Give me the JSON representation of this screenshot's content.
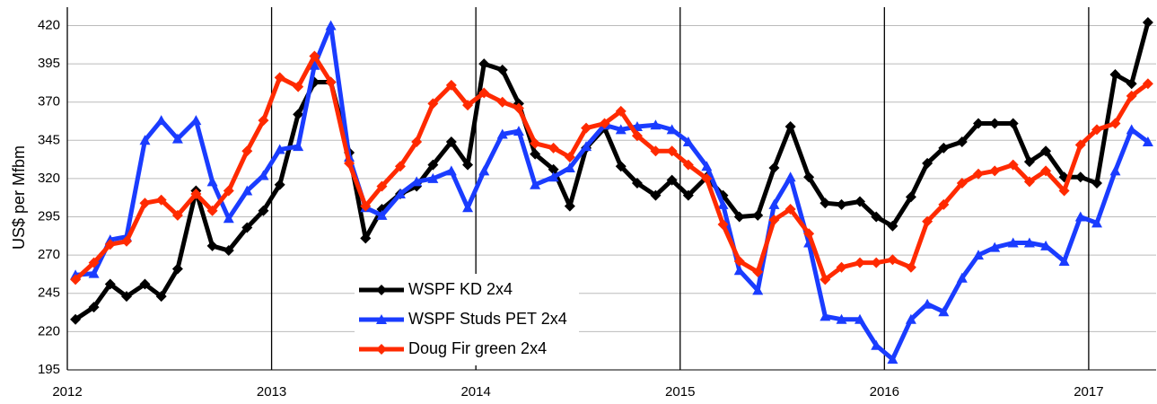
{
  "chart_data": {
    "type": "line",
    "y_label": "US$ per Mfbm",
    "x": [
      2012.04,
      2012.13,
      2012.21,
      2012.29,
      2012.38,
      2012.46,
      2012.54,
      2012.63,
      2012.71,
      2012.79,
      2012.88,
      2012.96,
      2013.04,
      2013.13,
      2013.21,
      2013.29,
      2013.38,
      2013.46,
      2013.54,
      2013.63,
      2013.71,
      2013.79,
      2013.88,
      2013.96,
      2014.04,
      2014.13,
      2014.21,
      2014.29,
      2014.38,
      2014.46,
      2014.54,
      2014.63,
      2014.71,
      2014.79,
      2014.88,
      2014.96,
      2015.04,
      2015.13,
      2015.21,
      2015.29,
      2015.38,
      2015.46,
      2015.54,
      2015.63,
      2015.71,
      2015.79,
      2015.88,
      2015.96,
      2016.04,
      2016.13,
      2016.21,
      2016.29,
      2016.38,
      2016.46,
      2016.54,
      2016.63,
      2016.71,
      2016.79,
      2016.88,
      2016.96,
      2017.04,
      2017.13,
      2017.21,
      2017.29
    ],
    "series": [
      {
        "name": "WSPF KD 2x4",
        "color": "#000000",
        "marker": "diamond",
        "values": [
          228,
          236,
          251,
          243,
          251,
          243,
          261,
          312,
          276,
          273,
          288,
          299,
          316,
          362,
          383,
          383,
          337,
          281,
          300,
          310,
          315,
          329,
          344,
          329,
          395,
          391,
          369,
          336,
          326,
          302,
          340,
          353,
          328,
          317,
          309,
          319,
          309,
          321,
          309,
          295,
          296,
          327,
          354,
          321,
          304,
          303,
          305,
          295,
          289,
          308,
          330,
          340,
          344,
          356,
          356,
          356,
          331,
          338,
          321,
          321,
          317,
          388,
          382,
          422
        ]
      },
      {
        "name": "WSPF Studs PET 2x4",
        "color": "#1a3cff",
        "marker": "triangle",
        "values": [
          257,
          258,
          280,
          282,
          345,
          358,
          346,
          358,
          318,
          294,
          312,
          322,
          339,
          341,
          394,
          420,
          334,
          301,
          296,
          310,
          318,
          320,
          325,
          301,
          325,
          349,
          351,
          316,
          321,
          327,
          341,
          355,
          352,
          354,
          355,
          352,
          344,
          328,
          303,
          260,
          247,
          303,
          321,
          278,
          230,
          228,
          228,
          211,
          202,
          228,
          238,
          233,
          255,
          270,
          275,
          278,
          278,
          276,
          266,
          295,
          291,
          325,
          352,
          344
        ]
      },
      {
        "name": "Doug Fir green 2x4",
        "color": "#ff2a00",
        "marker": "diamond",
        "values": [
          254,
          265,
          277,
          279,
          304,
          306,
          296,
          310,
          299,
          312,
          338,
          358,
          386,
          380,
          400,
          383,
          330,
          302,
          315,
          328,
          344,
          369,
          381,
          368,
          376,
          370,
          366,
          343,
          340,
          334,
          353,
          356,
          364,
          348,
          338,
          338,
          329,
          320,
          290,
          266,
          259,
          293,
          300,
          284,
          254,
          262,
          265,
          265,
          267,
          262,
          292,
          303,
          317,
          323,
          325,
          329,
          318,
          325,
          312,
          342,
          352,
          356,
          374,
          382
        ]
      }
    ],
    "xlim": [
      2012,
      2017.33
    ],
    "xticks": [
      2012,
      2013,
      2014,
      2015,
      2016,
      2017
    ],
    "ylim": [
      195,
      432
    ],
    "yticks": [
      195,
      220,
      245,
      270,
      295,
      320,
      345,
      370,
      395,
      420
    ],
    "grid": true,
    "legend": "bottom-left"
  }
}
